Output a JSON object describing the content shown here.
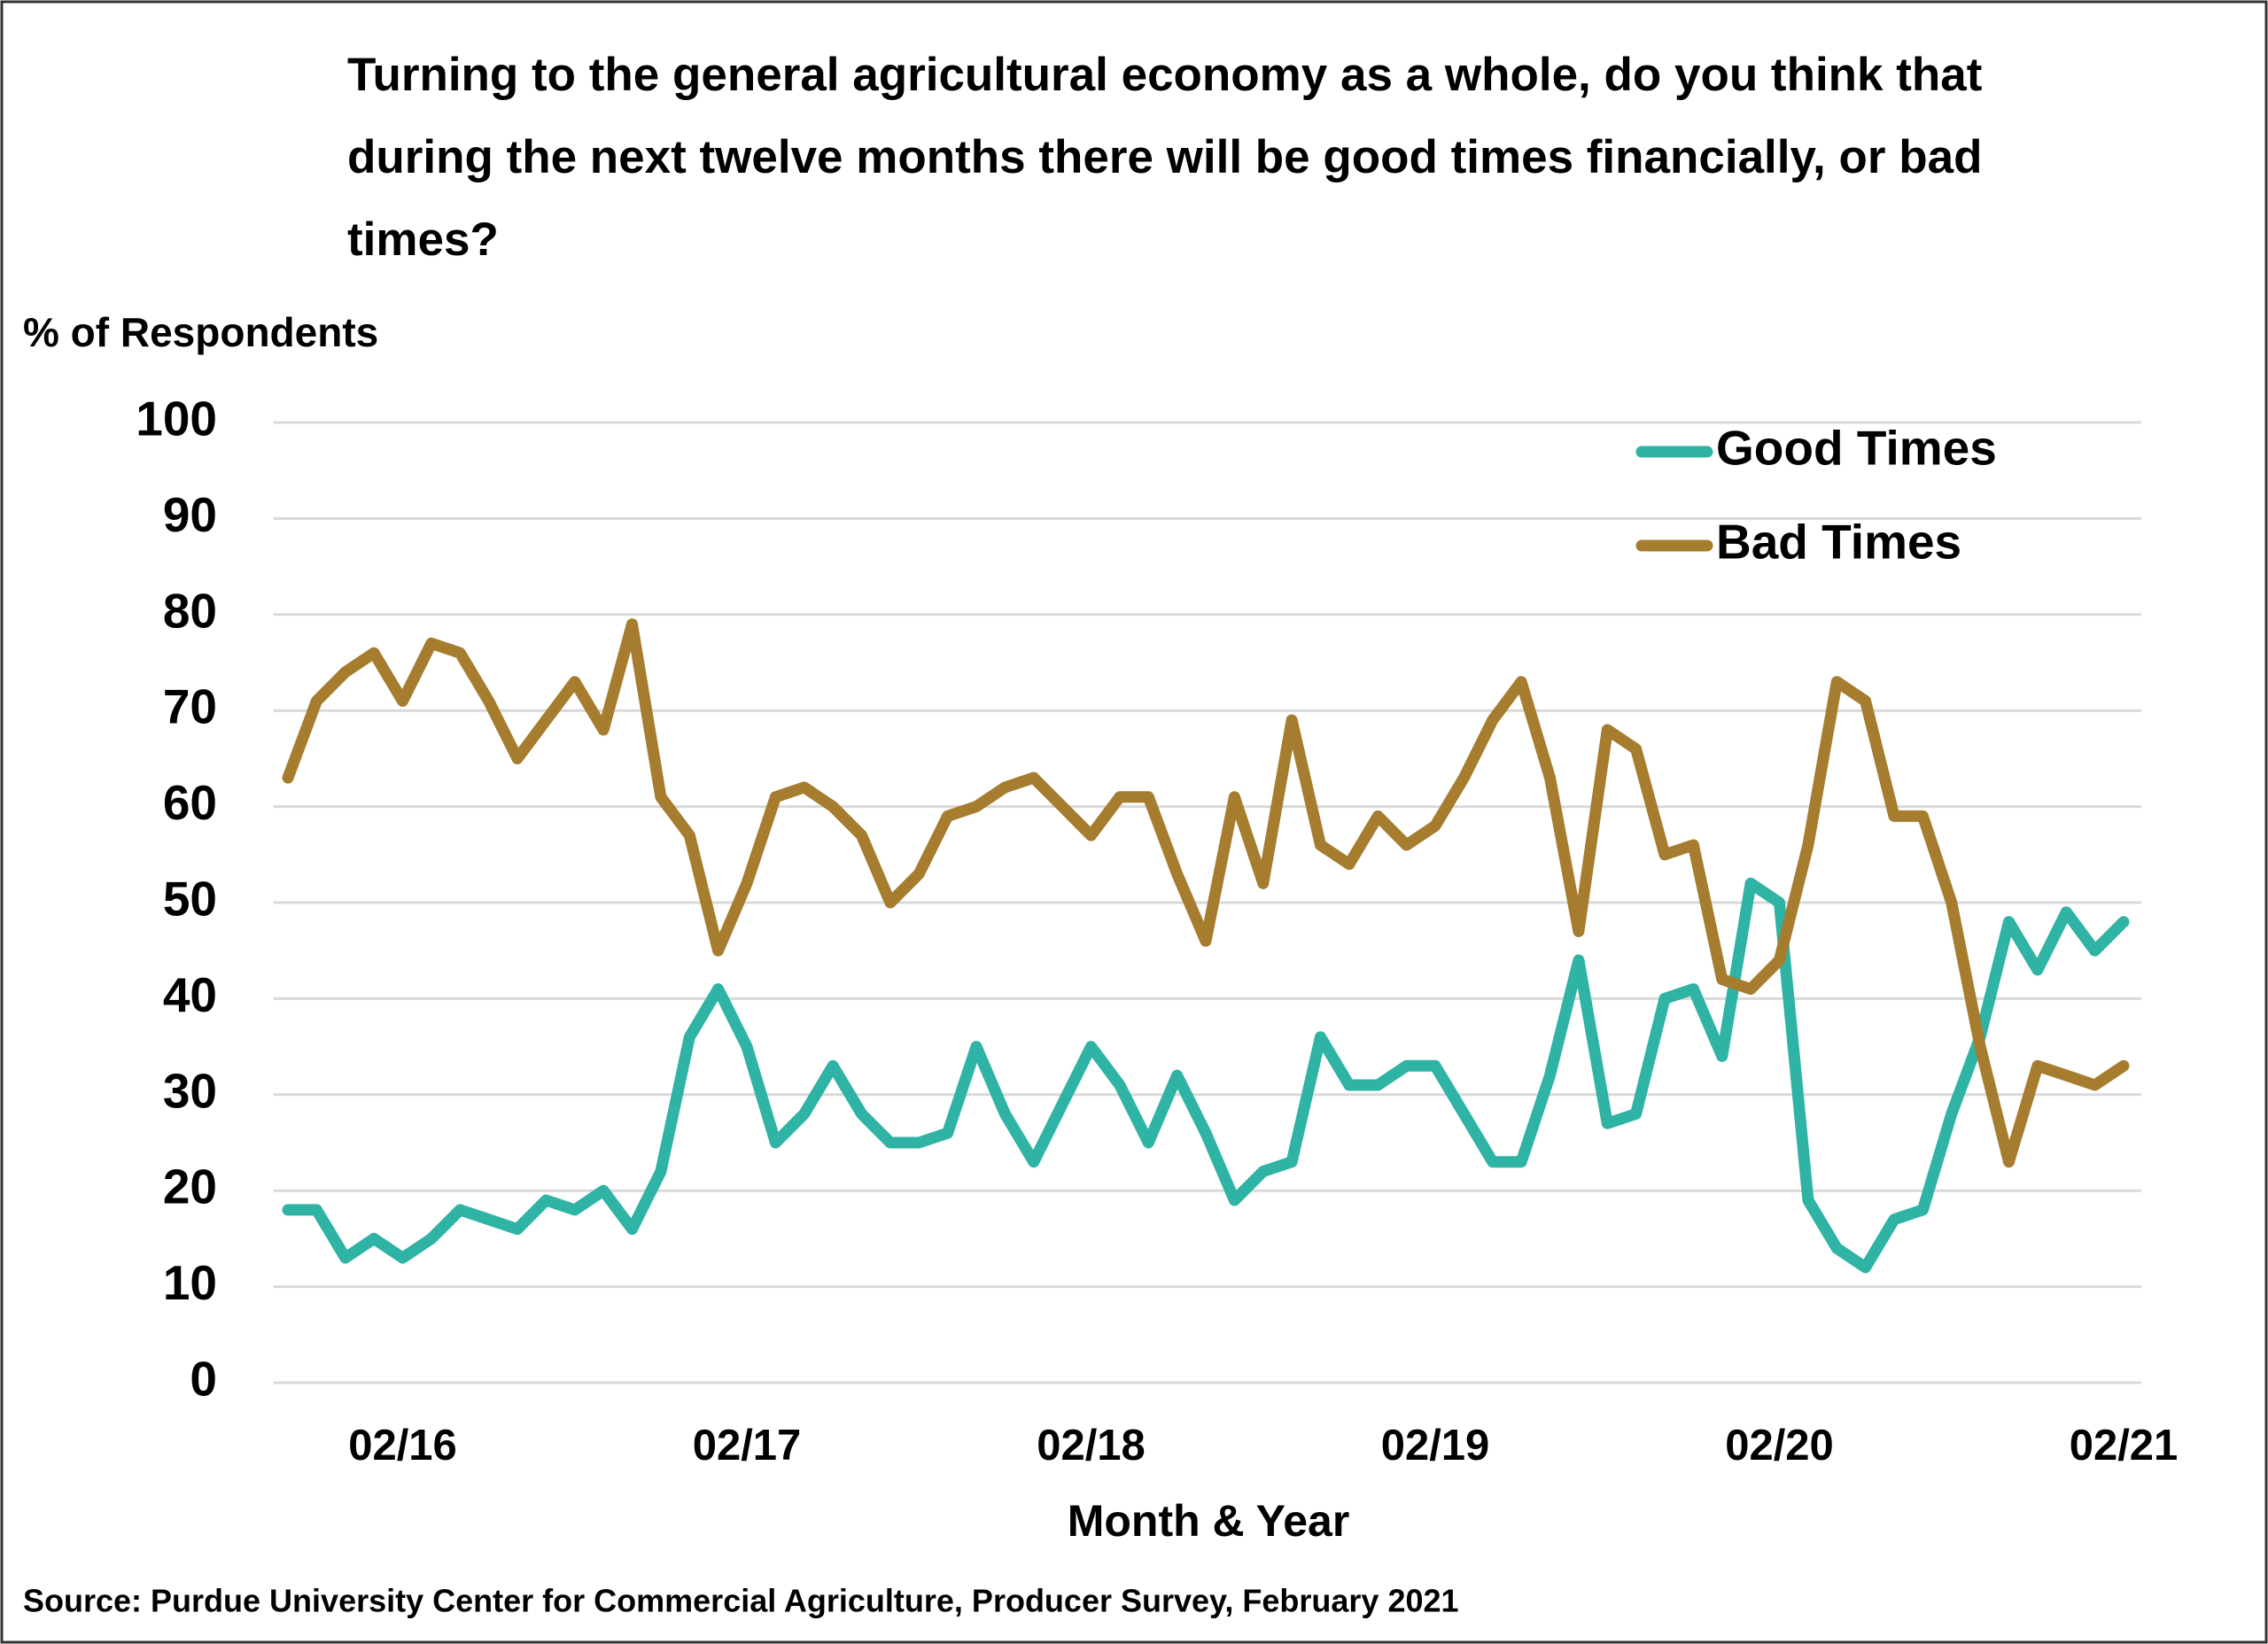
{
  "chart_data": {
    "type": "line",
    "title": "Turning to the general agricultural economy as a whole, do you think that during the next twelve months there will be good times financially, or bad times?",
    "y_label": "% of Respondents",
    "x_label": "Month & Year",
    "source": "Source: Purdue University Center for Commercial Agriculture, Producer Survey, February 2021",
    "categories": [
      null,
      null,
      null,
      null,
      "02/16",
      null,
      null,
      null,
      null,
      null,
      null,
      null,
      null,
      null,
      null,
      null,
      "02/17",
      null,
      null,
      null,
      null,
      null,
      null,
      null,
      null,
      null,
      null,
      null,
      "02/18",
      null,
      null,
      null,
      null,
      null,
      null,
      null,
      null,
      null,
      null,
      null,
      "02/19",
      null,
      null,
      null,
      null,
      null,
      null,
      null,
      null,
      null,
      null,
      null,
      "02/20",
      null,
      null,
      null,
      null,
      null,
      null,
      null,
      null,
      null,
      null,
      null,
      "02/21"
    ],
    "series": [
      {
        "name": "Good Times",
        "color": "#2fb3a5",
        "values": [
          18,
          18,
          13,
          15,
          13,
          15,
          18,
          17,
          16,
          19,
          18,
          20,
          16,
          22,
          36,
          41,
          35,
          25,
          28,
          33,
          28,
          25,
          25,
          26,
          35,
          28,
          23,
          29,
          35,
          31,
          25,
          32,
          26,
          19,
          22,
          23,
          36,
          31,
          31,
          33,
          33,
          28,
          23,
          23,
          32,
          44,
          27,
          28,
          40,
          41,
          34,
          52,
          50,
          19,
          14,
          12,
          17,
          18,
          28,
          36,
          48,
          43,
          49,
          45,
          48
        ]
      },
      {
        "name": "Bad Times",
        "color": "#a67c2e",
        "values": [
          63,
          71,
          74,
          76,
          71,
          77,
          76,
          71,
          65,
          69,
          73,
          68,
          79,
          61,
          57,
          45,
          52,
          61,
          62,
          60,
          57,
          50,
          53,
          59,
          60,
          62,
          63,
          60,
          57,
          61,
          61,
          53,
          46,
          61,
          52,
          69,
          56,
          54,
          59,
          56,
          58,
          63,
          69,
          73,
          63,
          47,
          68,
          66,
          55,
          56,
          42,
          41,
          44,
          56,
          73,
          71,
          59,
          59,
          50,
          35,
          23,
          33,
          32,
          31,
          33
        ]
      }
    ],
    "ylim": [
      0,
      100
    ],
    "yticks": [
      0,
      10,
      20,
      30,
      40,
      50,
      60,
      70,
      80,
      90,
      100
    ],
    "grid": true,
    "legend": "upper right"
  }
}
